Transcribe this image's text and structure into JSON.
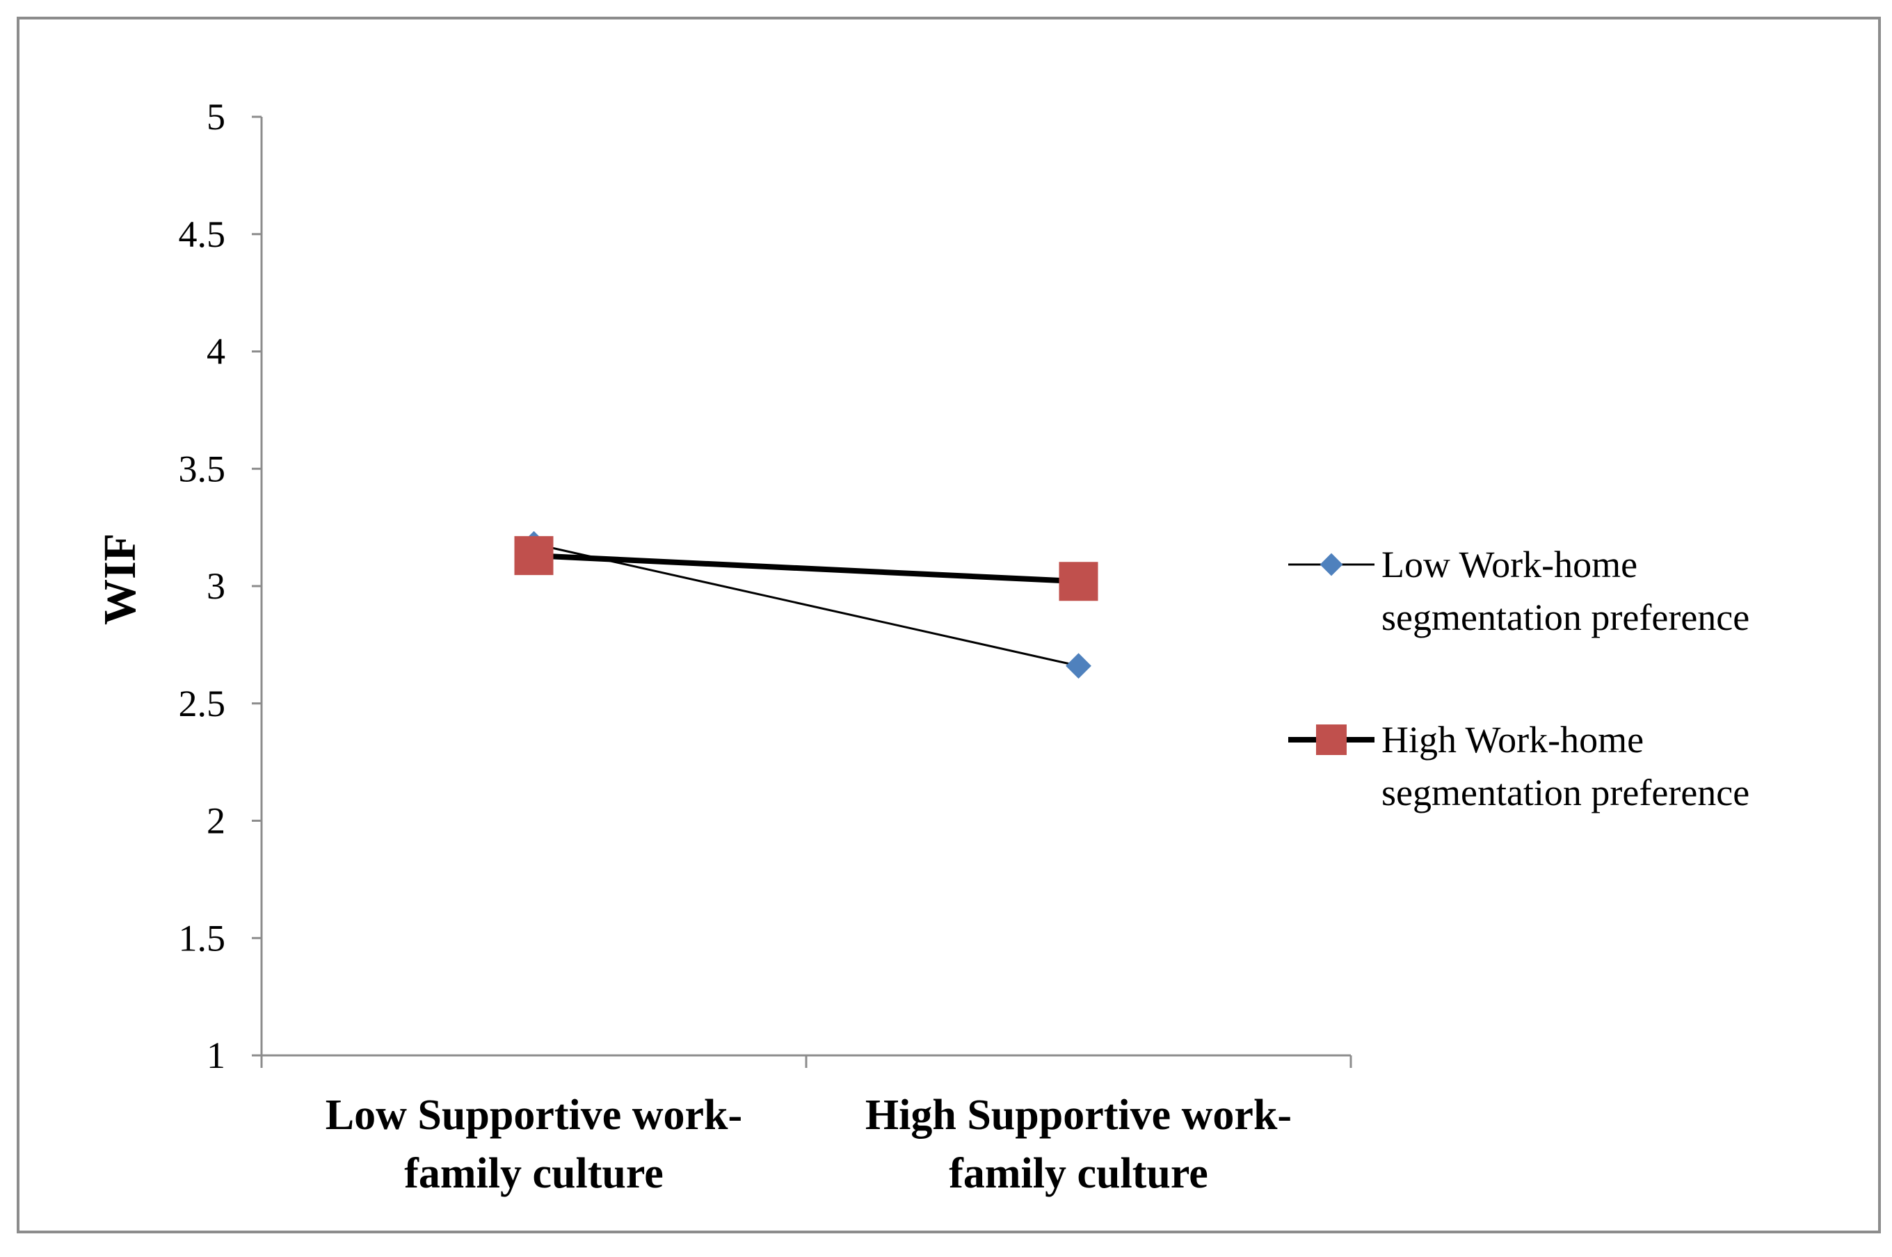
{
  "chart_data": {
    "type": "line",
    "categories": [
      [
        "Low Supportive work-",
        "family culture"
      ],
      [
        "High Supportive work-",
        "family culture"
      ]
    ],
    "ylabel": "WIF",
    "ylim": [
      1,
      5
    ],
    "yticks": [
      1,
      1.5,
      2,
      2.5,
      3,
      3.5,
      4,
      4.5,
      5
    ],
    "ytick_labels": [
      "1",
      "1.5",
      "2",
      "2.5",
      "3",
      "3.5",
      "4",
      "4.5",
      "5"
    ],
    "grid": false,
    "legend_position": "right",
    "series": [
      {
        "name_lines": [
          "Low Work-home",
          "segmentation preference"
        ],
        "values": [
          3.18,
          2.66
        ],
        "line_color": "#000000",
        "marker": "diamond",
        "marker_color": "#4F81BD"
      },
      {
        "name_lines": [
          "High Work-home",
          "segmentation preference"
        ],
        "values": [
          3.13,
          3.02
        ],
        "line_color": "#000000",
        "marker": "square",
        "marker_color": "#C0504D"
      }
    ]
  }
}
